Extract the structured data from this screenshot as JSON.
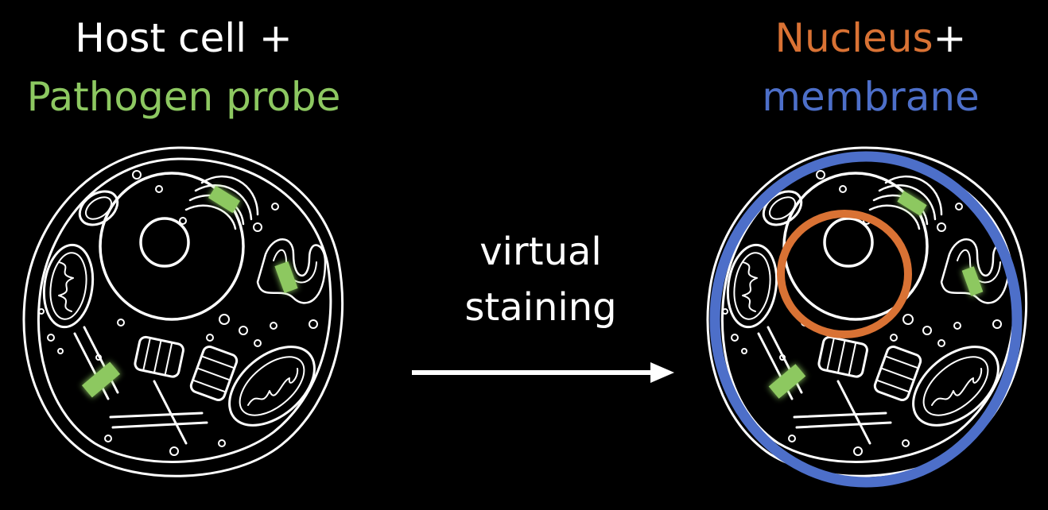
{
  "left_label": {
    "line1": "Host cell +",
    "line2": "Pathogen probe"
  },
  "middle_label": {
    "line1": "virtual",
    "line2": "staining"
  },
  "right_label": {
    "nucleus": "Nucleus",
    "plus": "+",
    "membrane": "membrane"
  },
  "colors": {
    "background": "#000000",
    "text_white": "#ffffff",
    "pathogen_green": "#8dc861",
    "nucleus_orange": "#d97234",
    "membrane_blue": "#4d6fc9",
    "cell_outline": "#ffffff"
  },
  "icons": [
    "cell-sketch",
    "pathogen-probe-marker",
    "nucleus-ring",
    "membrane-ring",
    "arrow-right-icon"
  ]
}
